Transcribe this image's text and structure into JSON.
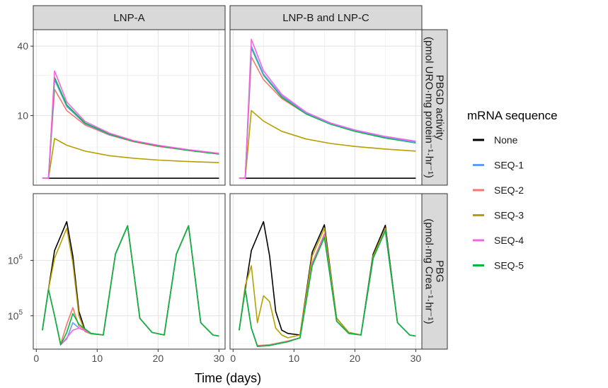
{
  "chart_data": {
    "type": "line",
    "facets": {
      "columns": [
        "LNP-A",
        "LNP-B and LNP-C"
      ],
      "rows": [
        "PBGD activity\n(pmol URO·mg protein⁻¹·hr⁻¹)",
        "PBG\n(pmol·mg Crea⁻¹·hr⁻¹)"
      ]
    },
    "xlabel": "Time (days)",
    "xticks": [
      0,
      10,
      20,
      30
    ],
    "xlim": [
      -0.5,
      31
    ],
    "panels_ylim": {
      "PBGD": [
        0,
        50
      ],
      "PBG": [
        25000,
        16000000
      ]
    },
    "yticks": {
      "PBGD": [
        {
          "v": 10,
          "label": "10"
        },
        {
          "v": 40,
          "label": "40"
        }
      ],
      "PBG": [
        {
          "v": 100000,
          "label": "10",
          "exp": "5"
        },
        {
          "v": 1000000,
          "label": "10",
          "exp": "6"
        }
      ]
    },
    "y_scale": {
      "PBGD": "sqrt",
      "PBG": "log"
    },
    "grid": true,
    "legend": {
      "title": "mRNA sequence",
      "position": "right",
      "entries": [
        "None",
        "SEQ-1",
        "SEQ-2",
        "SEQ-3",
        "SEQ-4",
        "SEQ-5"
      ]
    },
    "colors": {
      "None": "#000000",
      "SEQ-1": "#619CFF",
      "SEQ-2": "#F8766D",
      "SEQ-3": "#B79F00",
      "SEQ-4": "#F564E3",
      "SEQ-5": "#00BA38"
    },
    "panels": [
      {
        "row": "PBGD",
        "col": "LNP-A",
        "series": [
          {
            "name": "None",
            "x": [
              1,
              30
            ],
            "y": [
              0.1,
              0.1
            ]
          },
          {
            "name": "SEQ-3",
            "x": [
              1,
              2,
              3,
              5,
              8,
              12,
              16,
              20,
              25,
              30
            ],
            "y": [
              0.1,
              0.1,
              4.5,
              3.3,
              2.4,
              1.8,
              1.5,
              1.3,
              1.15,
              1.05
            ]
          },
          {
            "name": "SEQ-2",
            "x": [
              1,
              2,
              3,
              5,
              8,
              12,
              16,
              20,
              25,
              30
            ],
            "y": [
              0.1,
              0.1,
              19,
              11.5,
              7.5,
              5.2,
              3.9,
              3.1,
              2.5,
              2.0
            ]
          },
          {
            "name": "SEQ-1",
            "x": [
              1,
              2,
              3,
              5,
              8,
              12,
              16,
              20,
              25,
              30
            ],
            "y": [
              0.1,
              0.1,
              23,
              12.8,
              7.8,
              5.3,
              4.0,
              3.2,
              2.5,
              2.0
            ]
          },
          {
            "name": "SEQ-5",
            "x": [
              1,
              2,
              3,
              5,
              8,
              12,
              16,
              20,
              25,
              30
            ],
            "y": [
              0.1,
              0.1,
              24,
              13.3,
              8.0,
              5.4,
              4.0,
              3.2,
              2.5,
              2.0
            ]
          },
          {
            "name": "SEQ-4",
            "x": [
              1,
              2,
              3,
              5,
              8,
              12,
              16,
              20,
              25,
              30
            ],
            "y": [
              0.1,
              0.1,
              27,
              14.3,
              8.4,
              5.6,
              4.1,
              3.3,
              2.6,
              2.1
            ]
          }
        ]
      },
      {
        "row": "PBGD",
        "col": "LNP-B and LNP-C",
        "series": [
          {
            "name": "None",
            "x": [
              1,
              30
            ],
            "y": [
              0.1,
              0.1
            ]
          },
          {
            "name": "SEQ-3",
            "x": [
              1,
              2,
              3,
              5,
              8,
              12,
              16,
              20,
              25,
              30
            ],
            "y": [
              0.1,
              0.1,
              11.5,
              8.5,
              6.0,
              4.4,
              3.6,
              3.1,
              2.7,
              2.4
            ]
          },
          {
            "name": "SEQ-2",
            "x": [
              1,
              2,
              3,
              5,
              8,
              12,
              16,
              20,
              25,
              30
            ],
            "y": [
              0.1,
              0.1,
              34,
              23,
              15.5,
              10.5,
              7.8,
              6.1,
              4.8,
              3.9
            ]
          },
          {
            "name": "SEQ-5",
            "x": [
              1,
              2,
              3,
              5,
              8,
              12,
              16,
              20,
              25,
              30
            ],
            "y": [
              0.1,
              0.1,
              39,
              25,
              16.0,
              10.5,
              7.7,
              6.0,
              4.6,
              3.7
            ]
          },
          {
            "name": "SEQ-1",
            "x": [
              1,
              2,
              3,
              5,
              8,
              12,
              16,
              20,
              25,
              30
            ],
            "y": [
              0.1,
              0.1,
              40,
              25.5,
              16.5,
              10.8,
              7.9,
              6.2,
              4.8,
              3.8
            ]
          },
          {
            "name": "SEQ-4",
            "x": [
              1,
              2,
              3,
              5,
              8,
              12,
              16,
              20,
              25,
              30
            ],
            "y": [
              0.1,
              0.1,
              44,
              27,
              17.0,
              11.0,
              8.0,
              6.3,
              4.9,
              4.0
            ]
          }
        ]
      },
      {
        "row": "PBG",
        "col": "LNP-A",
        "series": [
          {
            "name": "None",
            "x": [
              1,
              2,
              3,
              5,
              6,
              7,
              8,
              9,
              11,
              13,
              15,
              17,
              19,
              21,
              23,
              25,
              27,
              29,
              30
            ],
            "y": [
              55000,
              300000,
              1500000,
              5000000,
              1200000,
              120000,
              55000,
              48000,
              45000,
              1300000,
              4200000,
              90000,
              50000,
              45000,
              1300000,
              4200000,
              75000,
              45000,
              43000
            ]
          },
          {
            "name": "SEQ-3",
            "x": [
              1,
              2,
              3,
              5,
              6,
              7,
              8,
              9,
              11,
              13,
              15,
              17,
              19,
              21,
              23,
              25,
              27,
              29,
              30
            ],
            "y": [
              55000,
              300000,
              1100000,
              3800000,
              900000,
              100000,
              52000,
              47000,
              45000,
              1300000,
              4200000,
              90000,
              50000,
              45000,
              1300000,
              4200000,
              75000,
              45000,
              43000
            ]
          },
          {
            "name": "SEQ-1",
            "x": [
              1,
              2,
              3,
              4,
              5,
              6,
              7,
              9,
              11,
              13,
              15,
              17,
              19,
              21,
              23,
              25,
              27,
              29,
              30
            ],
            "y": [
              55000,
              300000,
              100000,
              30000,
              38000,
              75000,
              60000,
              48000,
              45000,
              1300000,
              4200000,
              90000,
              50000,
              45000,
              1300000,
              4200000,
              75000,
              45000,
              43000
            ]
          },
          {
            "name": "SEQ-2",
            "x": [
              1,
              2,
              3,
              4,
              5,
              6,
              7,
              9,
              11,
              13,
              15,
              17,
              19,
              21,
              23,
              25,
              27,
              29,
              30
            ],
            "y": [
              55000,
              300000,
              100000,
              31000,
              70000,
              140000,
              65000,
              48000,
              45000,
              1300000,
              4200000,
              90000,
              50000,
              45000,
              1300000,
              4200000,
              75000,
              45000,
              43000
            ]
          },
          {
            "name": "SEQ-4",
            "x": [
              1,
              2,
              3,
              4,
              5,
              6,
              7,
              9,
              11,
              13,
              15,
              17,
              19,
              21,
              23,
              25,
              27,
              29,
              30
            ],
            "y": [
              55000,
              300000,
              100000,
              30000,
              40000,
              55000,
              60000,
              48000,
              45000,
              1300000,
              4200000,
              90000,
              50000,
              45000,
              1300000,
              4200000,
              75000,
              45000,
              43000
            ]
          },
          {
            "name": "SEQ-5",
            "x": [
              1,
              2,
              3,
              4,
              5,
              6,
              7,
              9,
              11,
              13,
              15,
              17,
              19,
              21,
              23,
              25,
              27,
              29,
              30
            ],
            "y": [
              55000,
              300000,
              100000,
              30000,
              50000,
              110000,
              70000,
              48000,
              45000,
              1300000,
              4200000,
              90000,
              50000,
              45000,
              1300000,
              4200000,
              75000,
              45000,
              43000
            ]
          }
        ]
      },
      {
        "row": "PBG",
        "col": "LNP-B and LNP-C",
        "series": [
          {
            "name": "None",
            "x": [
              1,
              2,
              3,
              5,
              6,
              7,
              8,
              9,
              11,
              13,
              15,
              17,
              19,
              21,
              23,
              25,
              27,
              29,
              30
            ],
            "y": [
              55000,
              300000,
              1500000,
              5000000,
              1200000,
              120000,
              55000,
              48000,
              45000,
              1400000,
              4400000,
              90000,
              50000,
              45000,
              1300000,
              4300000,
              75000,
              45000,
              43000
            ]
          },
          {
            "name": "SEQ-3",
            "x": [
              1,
              2,
              3,
              4,
              5,
              6,
              7,
              8,
              9,
              11,
              13,
              15,
              17,
              19,
              21,
              23,
              25,
              27,
              29,
              30
            ],
            "y": [
              55000,
              350000,
              800000,
              75000,
              230000,
              180000,
              60000,
              45000,
              40000,
              45000,
              1200000,
              3800000,
              90000,
              50000,
              45000,
              1200000,
              3800000,
              75000,
              45000,
              43000
            ]
          },
          {
            "name": "SEQ-2",
            "x": [
              1,
              2,
              3,
              4,
              6,
              9,
              11,
              13,
              15,
              17,
              19,
              21,
              23,
              25,
              27,
              29,
              30
            ],
            "y": [
              55000,
              300000,
              60000,
              29000,
              30000,
              35000,
              40000,
              900000,
              3000000,
              80000,
              48000,
              45000,
              1100000,
              3500000,
              75000,
              45000,
              43000
            ]
          },
          {
            "name": "SEQ-1",
            "x": [
              1,
              2,
              3,
              4,
              6,
              9,
              11,
              13,
              15,
              17,
              19,
              21,
              23,
              25,
              27,
              29,
              30
            ],
            "y": [
              55000,
              300000,
              60000,
              28000,
              29000,
              34000,
              40000,
              850000,
              2800000,
              80000,
              48000,
              45000,
              1100000,
              3500000,
              75000,
              45000,
              43000
            ]
          },
          {
            "name": "SEQ-4",
            "x": [
              1,
              2,
              3,
              4,
              6,
              9,
              11,
              13,
              15,
              17,
              19,
              21,
              23,
              25,
              27,
              29,
              30
            ],
            "y": [
              55000,
              300000,
              60000,
              28000,
              29000,
              34000,
              40000,
              850000,
              2800000,
              80000,
              48000,
              45000,
              1100000,
              3500000,
              75000,
              45000,
              43000
            ]
          },
          {
            "name": "SEQ-5",
            "x": [
              1,
              2,
              3,
              4,
              6,
              9,
              11,
              13,
              15,
              17,
              19,
              21,
              23,
              25,
              27,
              29,
              30
            ],
            "y": [
              55000,
              300000,
              60000,
              28000,
              29000,
              34000,
              40000,
              800000,
              2600000,
              80000,
              48000,
              45000,
              1100000,
              3400000,
              75000,
              45000,
              43000
            ]
          }
        ]
      }
    ]
  }
}
